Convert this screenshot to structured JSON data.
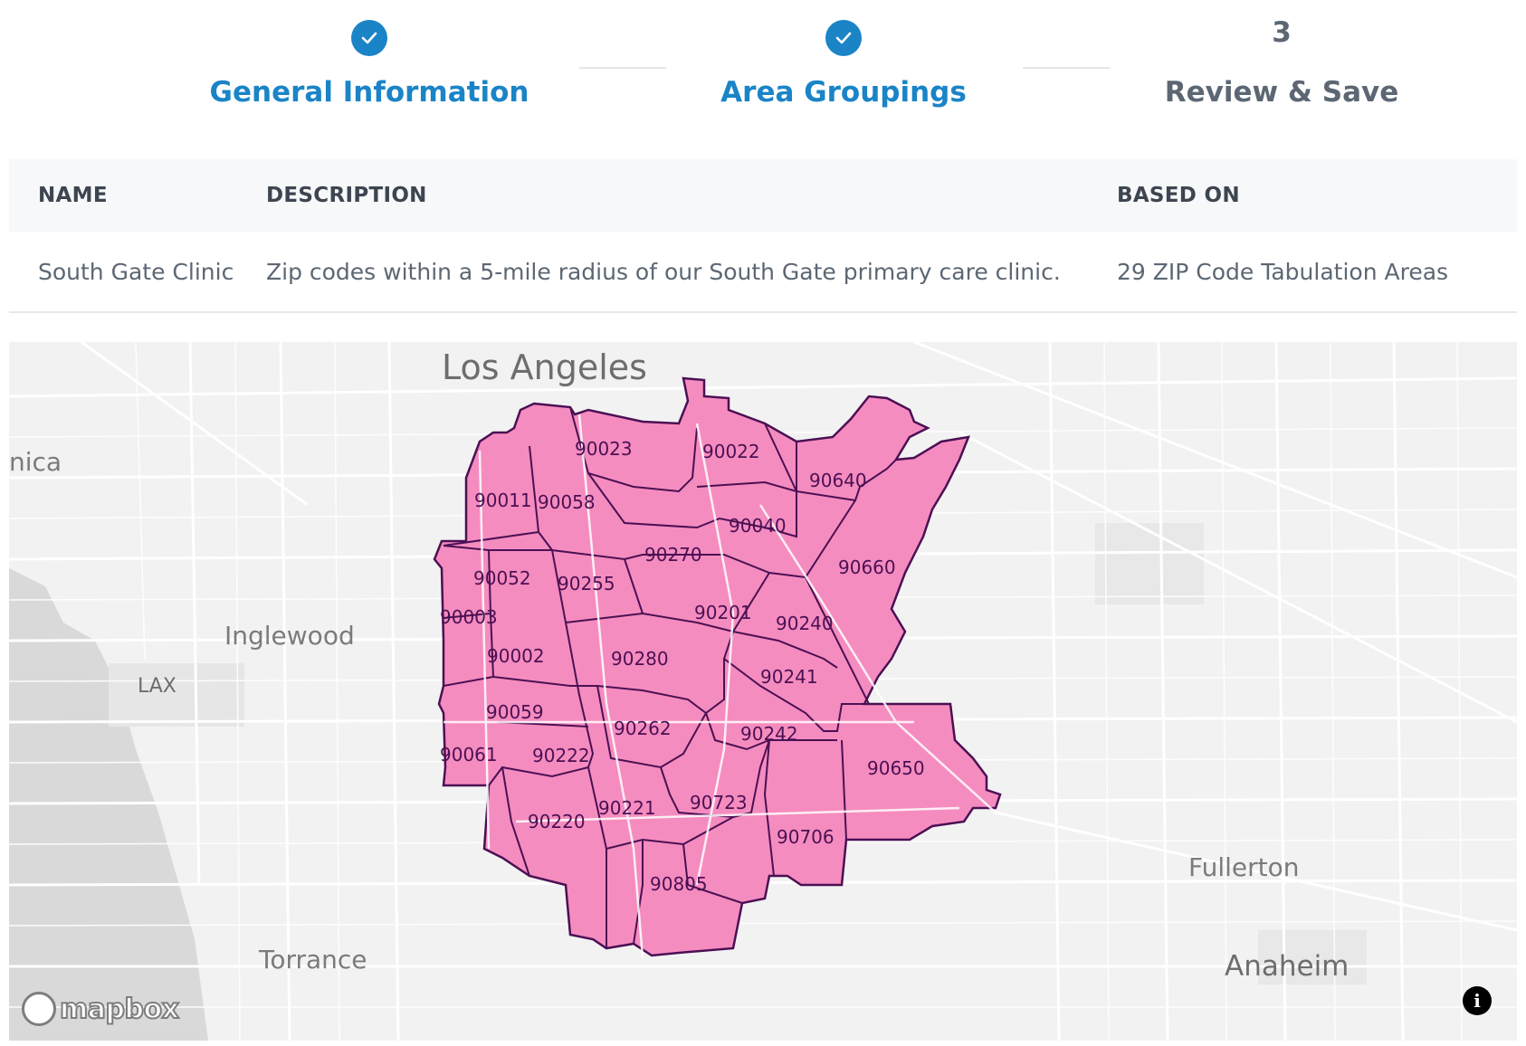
{
  "stepper": {
    "steps": [
      {
        "label": "General Information",
        "status": "complete",
        "icon": "check-icon"
      },
      {
        "label": "Area Groupings",
        "status": "complete",
        "icon": "check-icon"
      },
      {
        "label": "Review & Save",
        "status": "pending",
        "number": "3"
      }
    ],
    "accent_color": "#1a84c7"
  },
  "table": {
    "headers": {
      "name": "NAME",
      "description": "DESCRIPTION",
      "based_on": "BASED ON"
    },
    "row": {
      "name": "South Gate Clinic",
      "description": "Zip codes within a 5-mile radius of our South Gate primary care clinic.",
      "based_on": "29 ZIP Code Tabulation Areas"
    }
  },
  "map": {
    "cities": {
      "los_angeles": "Los Angeles",
      "monica": "nica",
      "inglewood": "Inglewood",
      "lax": "LAX",
      "torrance": "Torrance",
      "fullerton": "Fullerton",
      "anaheim": "Anaheim"
    },
    "fill_color": "#f58cbf",
    "border_color": "#4b1054",
    "zip_codes": [
      "90023",
      "90022",
      "90640",
      "90011",
      "90058",
      "90040",
      "90270",
      "90660",
      "90052",
      "90255",
      "90201",
      "90003",
      "90240",
      "90002",
      "90280",
      "90241",
      "90059",
      "90262",
      "90242",
      "90061",
      "90222",
      "90650",
      "90723",
      "90221",
      "90220",
      "90706",
      "90805"
    ],
    "attribution": "mapbox",
    "info_icon": "info-icon"
  }
}
